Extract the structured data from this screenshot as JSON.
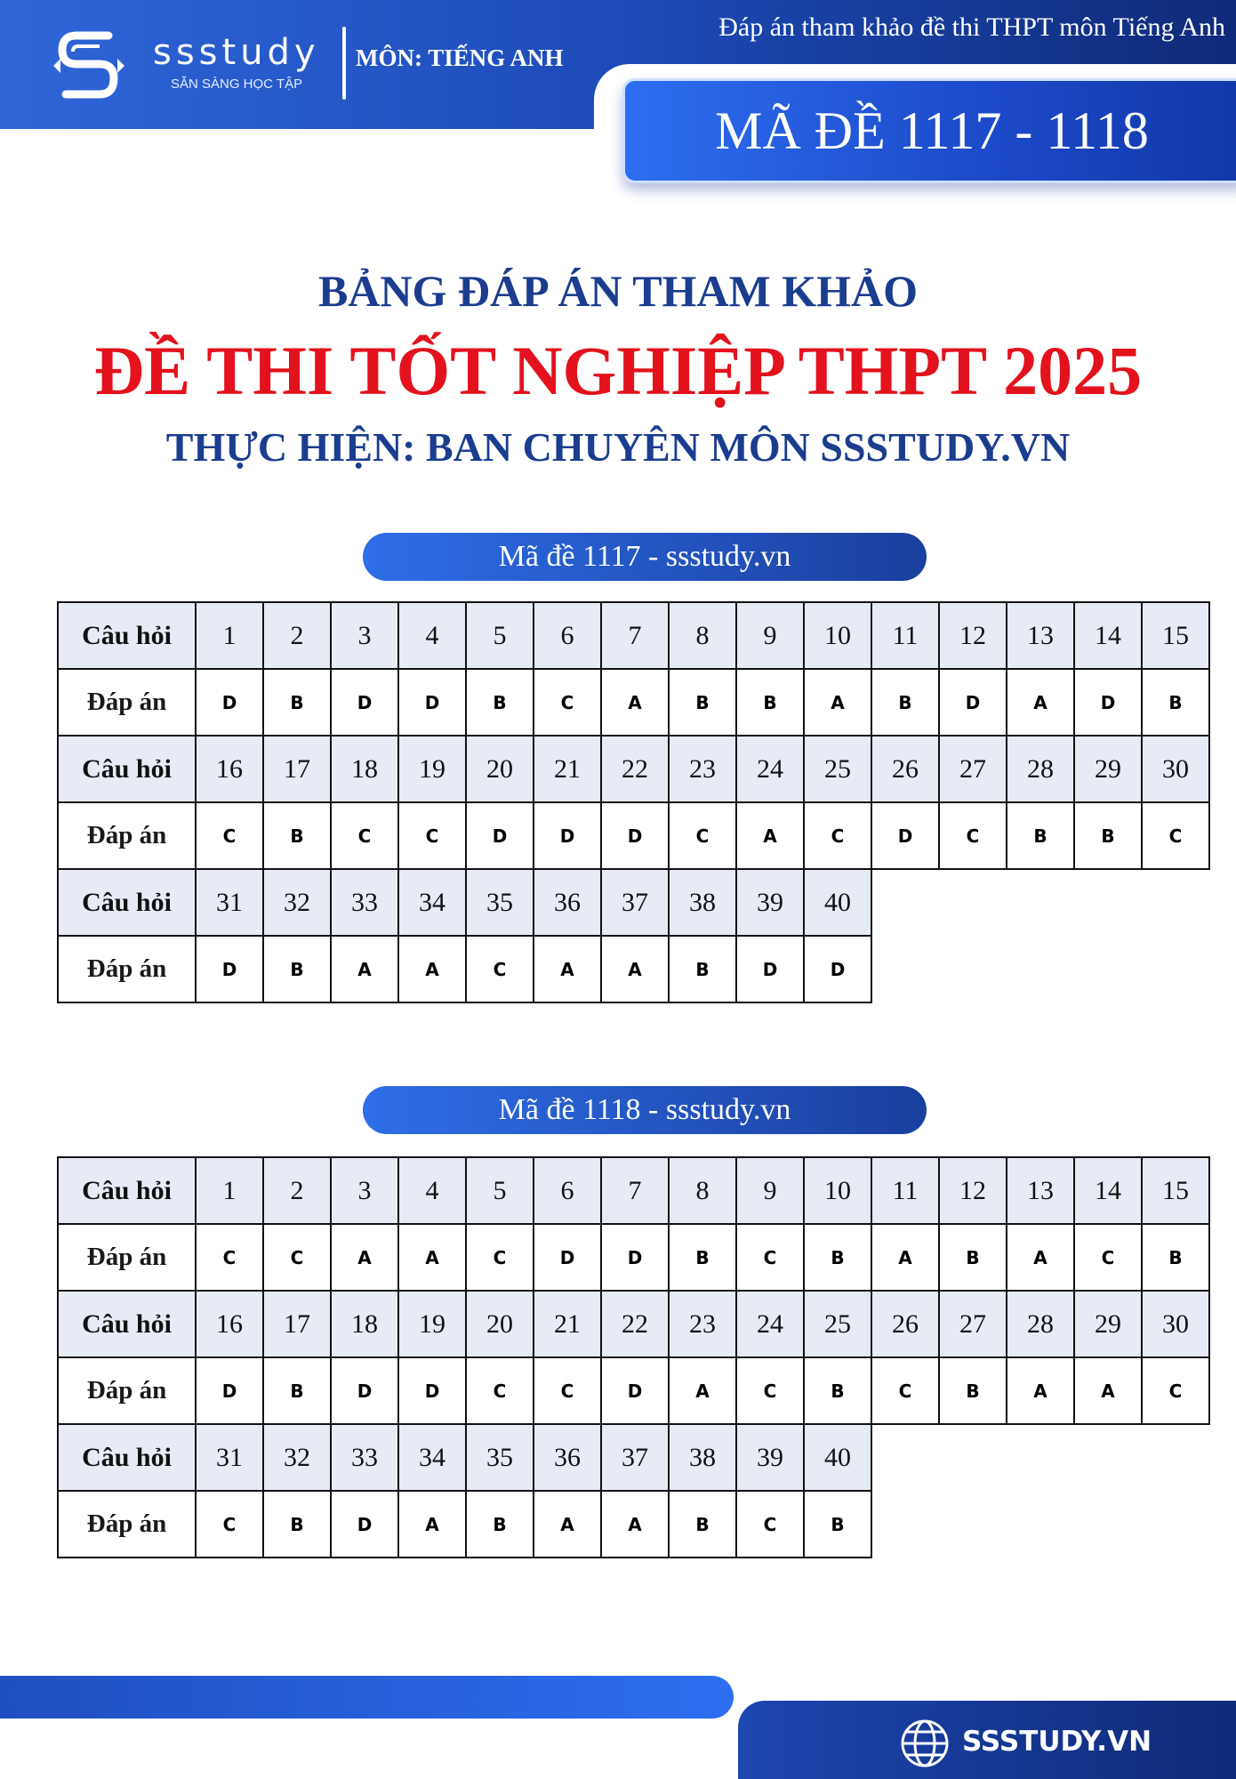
{
  "header": {
    "brand": "ssstudy",
    "brand_tagline": "SẴN SÀNG HỌC TẬP",
    "subject": "MÔN: TIẾNG ANH",
    "title": "Đáp án tham khảo đề thi THPT môn Tiếng Anh",
    "exam_codes": "MÃ ĐỀ 1117 - 1118",
    "colors": {
      "primary": "#1d4bb8",
      "dark": "#0f2a78"
    }
  },
  "headings": {
    "line1": "BẢNG ĐÁP ÁN THAM KHẢO",
    "line2": "ĐỀ THI TỐT NGHIỆP THPT 2025",
    "line3": "THỰC HIỆN: BAN CHUYÊN MÔN SSSTUDY.VN",
    "colors": {
      "navy": "#1b3d8f",
      "red": "#e3121c"
    }
  },
  "labels": {
    "question": "Câu hỏi",
    "answer": "Đáp án"
  },
  "exams": [
    {
      "title": "Mã đề 1117 - ssstudy.vn",
      "answers": [
        "D",
        "B",
        "D",
        "D",
        "B",
        "C",
        "A",
        "B",
        "B",
        "A",
        "B",
        "D",
        "A",
        "D",
        "B",
        "C",
        "B",
        "C",
        "C",
        "D",
        "D",
        "D",
        "C",
        "A",
        "C",
        "D",
        "C",
        "B",
        "B",
        "C",
        "D",
        "B",
        "A",
        "A",
        "C",
        "A",
        "A",
        "B",
        "D",
        "D"
      ]
    },
    {
      "title": "Mã đề 1118 - ssstudy.vn",
      "answers": [
        "C",
        "C",
        "A",
        "A",
        "C",
        "D",
        "D",
        "B",
        "C",
        "B",
        "A",
        "B",
        "A",
        "C",
        "B",
        "D",
        "B",
        "D",
        "D",
        "C",
        "C",
        "D",
        "A",
        "C",
        "B",
        "C",
        "B",
        "A",
        "A",
        "C",
        "C",
        "B",
        "D",
        "A",
        "B",
        "A",
        "A",
        "B",
        "C",
        "B"
      ]
    }
  ],
  "footer": {
    "website": "SSSTUDY.VN",
    "icon": "globe-icon"
  }
}
